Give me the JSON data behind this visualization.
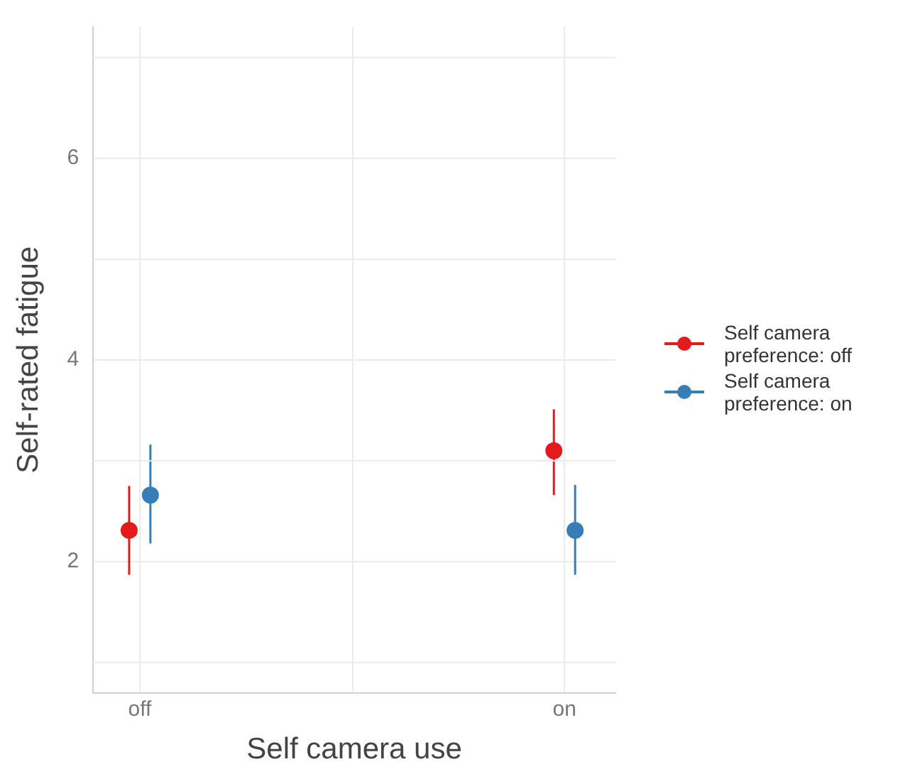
{
  "chart_data": {
    "type": "scatter",
    "xlabel": "Self camera use",
    "ylabel": "Self-rated fatigue",
    "categories": [
      "off",
      "on"
    ],
    "series": [
      {
        "name": "Self camera preference: off",
        "color": "#e41a1c",
        "values": [
          2.31,
          3.1
        ],
        "errors": [
          [
            1.87,
            2.75
          ],
          [
            2.66,
            3.51
          ]
        ]
      },
      {
        "name": "Self camera preference: on",
        "color": "#377eb8",
        "values": [
          2.66,
          2.31
        ],
        "errors": [
          [
            2.18,
            3.16
          ],
          [
            1.87,
            2.76
          ]
        ]
      }
    ],
    "ylim": [
      0.7,
      7.3
    ],
    "yticks": [
      2,
      4,
      6
    ],
    "grid": true,
    "legend": "right",
    "marker": "circle"
  }
}
